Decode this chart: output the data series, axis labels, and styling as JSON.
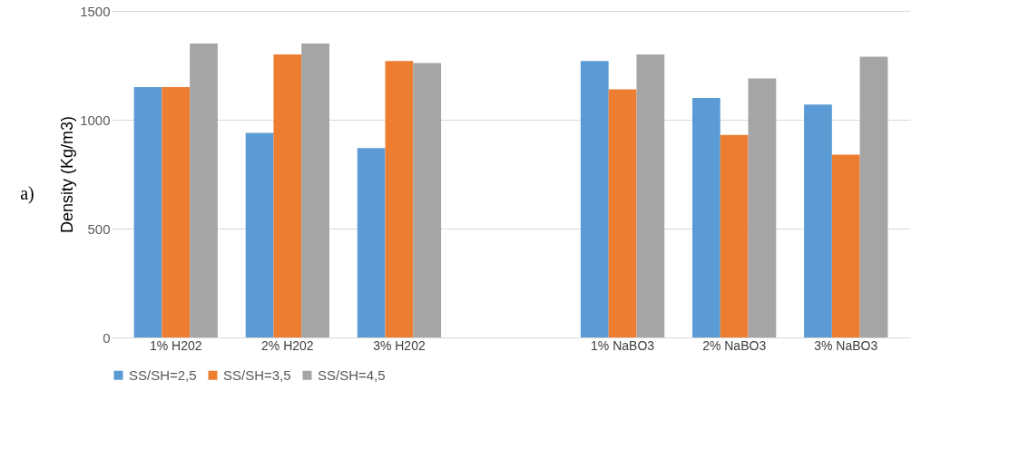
{
  "chart_data": {
    "type": "bar",
    "ylabel": "Density (Kg/m3)",
    "categories": [
      "1% H202",
      "2% H202",
      "3% H202",
      null,
      "1% NaBO3",
      "2% NaBO3",
      "3% NaBO3"
    ],
    "series": [
      {
        "name": "SS/SH=2,5",
        "color": "#5b9bd5",
        "values": [
          1150,
          940,
          870,
          null,
          1270,
          1100,
          1070
        ]
      },
      {
        "name": "SS/SH=3,5",
        "color": "#ed7d31",
        "values": [
          1150,
          1300,
          1270,
          null,
          1140,
          930,
          840
        ]
      },
      {
        "name": "SS/SH=4,5",
        "color": "#a5a5a5",
        "values": [
          1350,
          1350,
          1260,
          null,
          1300,
          1190,
          1290
        ]
      }
    ],
    "ylim": [
      0,
      1500
    ],
    "yticks": [
      0,
      500,
      1000,
      1500
    ],
    "grid": "y",
    "legend": "bottom",
    "annotations": [
      "a)"
    ]
  }
}
